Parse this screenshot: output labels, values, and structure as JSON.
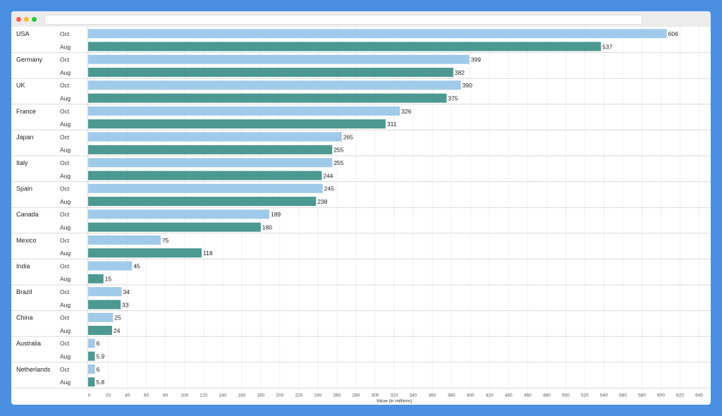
{
  "window": {
    "controls": [
      "close",
      "minimize",
      "zoom"
    ],
    "colors": {
      "close": "#fe5f57",
      "minimize": "#febc2e",
      "zoom": "#28c840"
    }
  },
  "chart_data": {
    "type": "bar",
    "orientation": "horizontal",
    "xlabel": "Value (in millions)",
    "xlim": [
      0,
      640
    ],
    "xticks": [
      0,
      20,
      40,
      60,
      80,
      100,
      120,
      140,
      160,
      180,
      200,
      220,
      240,
      260,
      280,
      300,
      320,
      340,
      360,
      380,
      400,
      420,
      440,
      460,
      480,
      500,
      520,
      540,
      560,
      580,
      600,
      620,
      640
    ],
    "grid": true,
    "legend": "none",
    "colors": {
      "Oct": "#a0cae9",
      "Aug": "#4b9991"
    },
    "categories": [
      "USA",
      "Germany",
      "UK",
      "France",
      "Japan",
      "Italy",
      "Spain",
      "Canada",
      "Mexico",
      "India",
      "Brazil",
      "China",
      "Australia",
      "Netherlands"
    ],
    "series": [
      {
        "name": "Oct",
        "values": [
          606,
          399,
          390,
          326,
          265,
          255,
          245,
          189,
          75,
          45,
          34,
          25,
          6,
          6
        ]
      },
      {
        "name": "Aug",
        "values": [
          537,
          382,
          375,
          311,
          255,
          244,
          238,
          180,
          118,
          15,
          33,
          24,
          5.9,
          5.8
        ]
      }
    ]
  }
}
